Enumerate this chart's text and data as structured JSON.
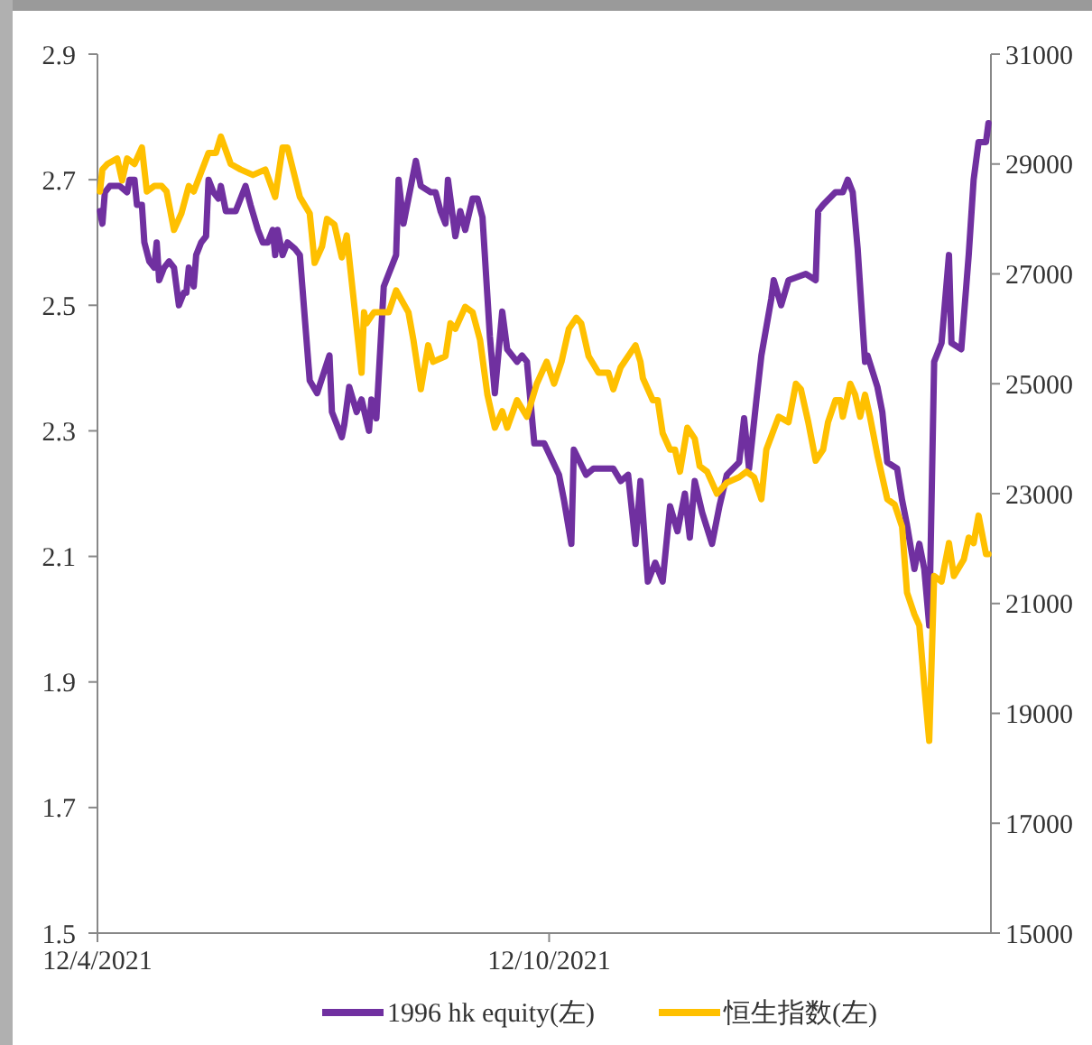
{
  "chart_data": {
    "type": "line",
    "xlim": [
      "2021-04-12",
      "2022-04-09"
    ],
    "xticks": [
      {
        "value": "2021-04-12",
        "label": "12/4/2021"
      },
      {
        "value": "2021-10-12",
        "label": "12/10/2021"
      }
    ],
    "ylim": [
      1.5,
      2.9
    ],
    "yticks": [
      1.5,
      1.7,
      1.9,
      2.1,
      2.3,
      2.5,
      2.7,
      2.9
    ],
    "y2lim": [
      15000,
      31000
    ],
    "y2ticks": [
      15000,
      17000,
      19000,
      21000,
      23000,
      25000,
      27000,
      29000,
      31000
    ],
    "legend": "bottom",
    "grid": false,
    "marker": "none",
    "line_style": "solid",
    "series": [
      {
        "name": "1996 hk equity(左)",
        "color": "#7030a0",
        "x": [
          "2021-04-13",
          "2021-04-14",
          "2021-04-15",
          "2021-04-17",
          "2021-04-19",
          "2021-04-21",
          "2021-04-24",
          "2021-04-25",
          "2021-04-27",
          "2021-04-28",
          "2021-04-30",
          "2021-05-01",
          "2021-05-03",
          "2021-05-05",
          "2021-05-06",
          "2021-05-07",
          "2021-05-09",
          "2021-05-11",
          "2021-05-13",
          "2021-05-15",
          "2021-05-17",
          "2021-05-18",
          "2021-05-19",
          "2021-05-21",
          "2021-05-22",
          "2021-05-24",
          "2021-05-26",
          "2021-05-27",
          "2021-05-29",
          "2021-05-31",
          "2021-06-01",
          "2021-06-03",
          "2021-06-05",
          "2021-06-07",
          "2021-06-09",
          "2021-06-11",
          "2021-06-13",
          "2021-06-16",
          "2021-06-18",
          "2021-06-20",
          "2021-06-22",
          "2021-06-23",
          "2021-06-24",
          "2021-06-26",
          "2021-06-28",
          "2021-07-01",
          "2021-07-03",
          "2021-07-07",
          "2021-07-10",
          "2021-07-15",
          "2021-07-16",
          "2021-07-20",
          "2021-07-21",
          "2021-07-23",
          "2021-07-26",
          "2021-07-28",
          "2021-07-31",
          "2021-08-01",
          "2021-08-03",
          "2021-08-06",
          "2021-08-11",
          "2021-08-12",
          "2021-08-14",
          "2021-08-19",
          "2021-08-21",
          "2021-08-25",
          "2021-08-27",
          "2021-08-29",
          "2021-08-31",
          "2021-09-01",
          "2021-09-04",
          "2021-09-06",
          "2021-09-08",
          "2021-09-11",
          "2021-09-13",
          "2021-09-15",
          "2021-09-18",
          "2021-09-20",
          "2021-09-23",
          "2021-09-25",
          "2021-09-29",
          "2021-10-01",
          "2021-10-03",
          "2021-10-06",
          "2021-10-10",
          "2021-10-16",
          "2021-10-18",
          "2021-10-21",
          "2021-10-22",
          "2021-10-27",
          "2021-10-30",
          "2021-11-07",
          "2021-11-10",
          "2021-11-13",
          "2021-11-16",
          "2021-11-18",
          "2021-11-21",
          "2021-11-24",
          "2021-11-27",
          "2021-11-30",
          "2021-12-03",
          "2021-12-06",
          "2021-12-08",
          "2021-12-10",
          "2021-12-13",
          "2021-12-17",
          "2021-12-20",
          "2021-12-23",
          "2021-12-28",
          "2021-12-30",
          "2022-01-01",
          "2022-01-04",
          "2022-01-06",
          "2022-01-10",
          "2022-01-11",
          "2022-01-14",
          "2022-01-17",
          "2022-01-24",
          "2022-01-28",
          "2022-01-29",
          "2022-01-31",
          "2022-02-05",
          "2022-02-08",
          "2022-02-10",
          "2022-02-12",
          "2022-02-14",
          "2022-02-17",
          "2022-02-18",
          "2022-02-22",
          "2022-02-24",
          "2022-02-26",
          "2022-03-02",
          "2022-03-04",
          "2022-03-06",
          "2022-03-09",
          "2022-03-11",
          "2022-03-13",
          "2022-03-15",
          "2022-03-17",
          "2022-03-20",
          "2022-03-23",
          "2022-03-24",
          "2022-03-28",
          "2022-03-31",
          "2022-04-02",
          "2022-04-04",
          "2022-04-07",
          "2022-04-08"
        ],
        "values": [
          2.65,
          2.63,
          2.68,
          2.69,
          2.69,
          2.69,
          2.68,
          2.7,
          2.7,
          2.66,
          2.66,
          2.6,
          2.57,
          2.56,
          2.6,
          2.54,
          2.56,
          2.57,
          2.56,
          2.5,
          2.52,
          2.52,
          2.56,
          2.53,
          2.58,
          2.6,
          2.61,
          2.7,
          2.68,
          2.67,
          2.69,
          2.65,
          2.65,
          2.65,
          2.67,
          2.69,
          2.66,
          2.62,
          2.6,
          2.6,
          2.62,
          2.58,
          2.62,
          2.58,
          2.6,
          2.59,
          2.58,
          2.38,
          2.36,
          2.42,
          2.33,
          2.29,
          2.31,
          2.37,
          2.33,
          2.35,
          2.3,
          2.35,
          2.32,
          2.53,
          2.58,
          2.7,
          2.63,
          2.73,
          2.69,
          2.68,
          2.68,
          2.65,
          2.63,
          2.7,
          2.61,
          2.65,
          2.62,
          2.67,
          2.67,
          2.64,
          2.45,
          2.36,
          2.49,
          2.43,
          2.41,
          2.42,
          2.41,
          2.28,
          2.28,
          2.23,
          2.19,
          2.12,
          2.27,
          2.23,
          2.24,
          2.24,
          2.22,
          2.23,
          2.12,
          2.22,
          2.06,
          2.09,
          2.06,
          2.18,
          2.14,
          2.2,
          2.13,
          2.22,
          2.17,
          2.12,
          2.18,
          2.23,
          2.25,
          2.32,
          2.24,
          2.35,
          2.42,
          2.51,
          2.54,
          2.5,
          2.54,
          2.55,
          2.54,
          2.65,
          2.66,
          2.68,
          2.68,
          2.7,
          2.68,
          2.59,
          2.41,
          2.42,
          2.37,
          2.33,
          2.25,
          2.24,
          2.19,
          2.15,
          2.08,
          2.12,
          2.08,
          1.99,
          2.41,
          2.44,
          2.58,
          2.44,
          2.43,
          2.58,
          2.7,
          2.76,
          2.76,
          2.79
        ]
      },
      {
        "name": "恒生指数(左)",
        "color": "#ffc000",
        "axis": "y2",
        "x": [
          "2021-04-13",
          "2021-04-14",
          "2021-04-16",
          "2021-04-20",
          "2021-04-22",
          "2021-04-24",
          "2021-04-27",
          "2021-04-30",
          "2021-05-02",
          "2021-05-05",
          "2021-05-08",
          "2021-05-10",
          "2021-05-13",
          "2021-05-16",
          "2021-05-19",
          "2021-05-21",
          "2021-05-27",
          "2021-05-30",
          "2021-06-01",
          "2021-06-05",
          "2021-06-09",
          "2021-06-14",
          "2021-06-19",
          "2021-06-23",
          "2021-06-26",
          "2021-06-28",
          "2021-07-03",
          "2021-07-07",
          "2021-07-09",
          "2021-07-12",
          "2021-07-14",
          "2021-07-17",
          "2021-07-20",
          "2021-07-22",
          "2021-07-28",
          "2021-07-29",
          "2021-07-30",
          "2021-08-02",
          "2021-08-08",
          "2021-08-11",
          "2021-08-16",
          "2021-08-18",
          "2021-08-21",
          "2021-08-24",
          "2021-08-26",
          "2021-08-31",
          "2021-09-02",
          "2021-09-04",
          "2021-09-08",
          "2021-09-11",
          "2021-09-14",
          "2021-09-17",
          "2021-09-20",
          "2021-09-23",
          "2021-09-25",
          "2021-09-29",
          "2021-10-03",
          "2021-10-07",
          "2021-10-11",
          "2021-10-14",
          "2021-10-17",
          "2021-10-20",
          "2021-10-23",
          "2021-10-25",
          "2021-10-28",
          "2021-11-01",
          "2021-11-05",
          "2021-11-07",
          "2021-11-10",
          "2021-11-16",
          "2021-11-18",
          "2021-11-19",
          "2021-11-23",
          "2021-11-25",
          "2021-11-27",
          "2021-11-30",
          "2021-12-02",
          "2021-12-04",
          "2021-12-07",
          "2021-12-10",
          "2021-12-12",
          "2021-12-15",
          "2021-12-19",
          "2021-12-23",
          "2021-12-28",
          "2021-12-31",
          "2022-01-03",
          "2022-01-06",
          "2022-01-08",
          "2022-01-13",
          "2022-01-17",
          "2022-01-20",
          "2022-01-22",
          "2022-01-25",
          "2022-01-28",
          "2022-01-31",
          "2022-02-02",
          "2022-02-05",
          "2022-02-07",
          "2022-02-08",
          "2022-02-11",
          "2022-02-13",
          "2022-02-15",
          "2022-02-17",
          "2022-02-19",
          "2022-02-22",
          "2022-02-26",
          "2022-03-01",
          "2022-03-04",
          "2022-03-06",
          "2022-03-09",
          "2022-03-11",
          "2022-03-13",
          "2022-03-15",
          "2022-03-17",
          "2022-03-20",
          "2022-03-23",
          "2022-03-25",
          "2022-03-29",
          "2022-03-31",
          "2022-04-02",
          "2022-04-04",
          "2022-04-07",
          "2022-04-08"
        ],
        "values": [
          28500,
          28900,
          29000,
          29100,
          28700,
          29100,
          29000,
          29300,
          28500,
          28600,
          28600,
          28500,
          27800,
          28100,
          28600,
          28500,
          29200,
          29200,
          29500,
          29000,
          28900,
          28800,
          28900,
          28400,
          29300,
          29300,
          28400,
          28100,
          27200,
          27500,
          28000,
          27900,
          27300,
          27700,
          25200,
          26300,
          26100,
          26300,
          26300,
          26700,
          26300,
          25800,
          24900,
          25700,
          25400,
          25500,
          26100,
          26000,
          26400,
          26300,
          25800,
          24800,
          24200,
          24500,
          24200,
          24700,
          24400,
          25000,
          25400,
          25000,
          25400,
          26000,
          26200,
          26100,
          25500,
          25200,
          25200,
          24900,
          25300,
          25700,
          25400,
          25100,
          24700,
          24700,
          24100,
          23800,
          23800,
          23400,
          24200,
          24000,
          23500,
          23400,
          23000,
          23200,
          23300,
          23400,
          23300,
          22900,
          23800,
          24400,
          24300,
          25000,
          24900,
          24300,
          23600,
          23800,
          24300,
          24700,
          24700,
          24400,
          25000,
          24800,
          24400,
          24800,
          24400,
          23700,
          22900,
          22800,
          22400,
          21200,
          20800,
          20600,
          19500,
          18500,
          21500,
          21400,
          22100,
          21500,
          21800,
          22200,
          22100,
          22600,
          21900,
          21900
        ]
      }
    ]
  }
}
